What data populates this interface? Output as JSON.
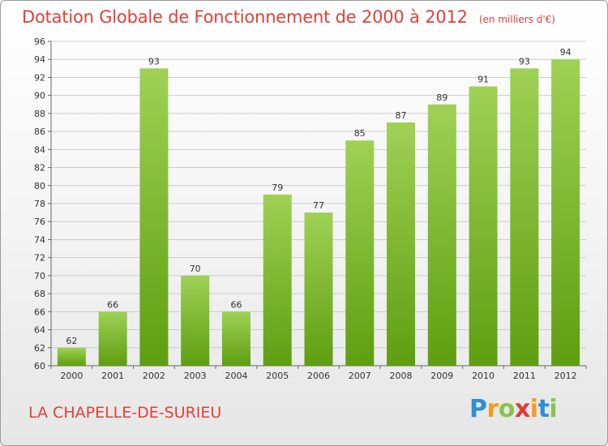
{
  "header": {
    "title": "Dotation Globale de Fonctionnement de 2000 à 2012",
    "unit": "(en milliers d'€)"
  },
  "footer": {
    "commune": "LA CHAPELLE-DE-SURIEU",
    "logo": "Proxiti"
  },
  "colors": {
    "title": "#e0403a",
    "bar_light": "#9fd155",
    "bar_dark": "#5e9e10",
    "grid": "#cccccc"
  },
  "chart_data": {
    "type": "bar",
    "categories": [
      "2000",
      "2001",
      "2002",
      "2003",
      "2004",
      "2005",
      "2006",
      "2007",
      "2008",
      "2009",
      "2010",
      "2011",
      "2012"
    ],
    "values": [
      62,
      66,
      93,
      70,
      66,
      79,
      77,
      85,
      87,
      89,
      91,
      93,
      94
    ],
    "title": "Dotation Globale de Fonctionnement de 2000 à 2012",
    "subtitle": "(en milliers d'€)",
    "xlabel": "",
    "ylabel": "",
    "ylim": [
      60,
      96
    ],
    "yticks": [
      60,
      62,
      64,
      66,
      68,
      70,
      72,
      74,
      76,
      78,
      80,
      82,
      84,
      86,
      88,
      90,
      92,
      94,
      96
    ],
    "grid": true,
    "legend": "none"
  }
}
